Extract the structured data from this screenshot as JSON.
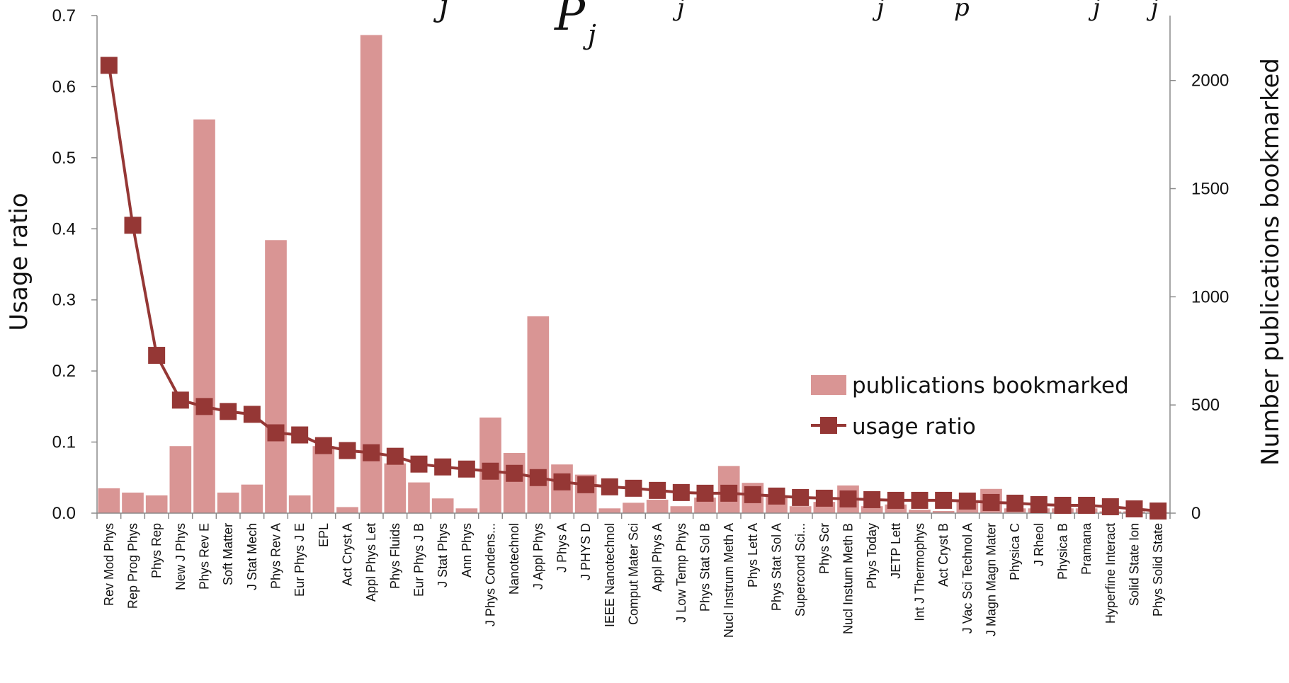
{
  "header": {
    "formula_fragments": [
      "j",
      "P",
      "j",
      "j",
      "j",
      "p",
      "j",
      "j"
    ]
  },
  "chart_data": {
    "type": "bar",
    "categories": [
      "Rev Mod Phys",
      "Rep Prog Phys",
      "Phys Rep",
      "New J Phys",
      "Phys Rev E",
      "Soft Matter",
      "J Stat Mech",
      "Phys Rev A",
      "Eur Phys J E",
      "EPL",
      "Act Cryst A",
      "Appl Phys Let",
      "Phys Fluids",
      "Eur Phys J B",
      "J Stat Phys",
      "Ann Phys",
      "J Phys Condens...",
      "Nanotechnol",
      "J Appl Phys",
      "J Phys A",
      "J PHYS D",
      "IEEE Nanotechnol",
      "Comput Mater Sci",
      "Appl Phys A",
      "J Low Temp Phys",
      "Phys Stat Sol B",
      "Nucl Instrum Meth A",
      "Phys Lett A",
      "Phys Stat Sol A",
      "Supercond Sci...",
      "Phys Scr",
      "Nucl Instum Meth B",
      "Phys Today",
      "JETP Lett",
      "Int J Thermophys",
      "Act Cryst B",
      "J Vac Sci Technol A",
      "J Magn Magn Mater",
      "Physica C",
      "J Rheol",
      "Physica B",
      "Pramana",
      "Hyperfine Interact",
      "Solid State Ion",
      "Phys Solid State"
    ],
    "series": [
      {
        "name": "publications bookmarked",
        "axis": "right",
        "style": "bar",
        "color": "#d99594",
        "values": [
          115,
          95,
          82,
          310,
          1820,
          95,
          132,
          1262,
          82,
          310,
          28,
          2210,
          230,
          142,
          68,
          22,
          442,
          278,
          910,
          225,
          178,
          22,
          48,
          62,
          32,
          72,
          218,
          140,
          82,
          32,
          52,
          128,
          32,
          40,
          16,
          10,
          52,
          112,
          22,
          22,
          22,
          22,
          8,
          8,
          4
        ]
      },
      {
        "name": "usage ratio",
        "axis": "left",
        "style": "line",
        "color": "#953735",
        "values": [
          0.63,
          0.405,
          0.222,
          0.159,
          0.15,
          0.143,
          0.139,
          0.113,
          0.11,
          0.095,
          0.088,
          0.085,
          0.08,
          0.069,
          0.065,
          0.062,
          0.059,
          0.056,
          0.05,
          0.044,
          0.04,
          0.037,
          0.035,
          0.032,
          0.029,
          0.028,
          0.028,
          0.026,
          0.024,
          0.022,
          0.021,
          0.02,
          0.019,
          0.018,
          0.018,
          0.018,
          0.017,
          0.015,
          0.014,
          0.012,
          0.011,
          0.011,
          0.009,
          0.006,
          0.003
        ]
      }
    ],
    "ylabel": "Usage ratio",
    "y2label": "Number publications bookmarked",
    "ylim": [
      0,
      0.7
    ],
    "y2lim": [
      0,
      2300
    ],
    "yticks": [
      "0.0",
      "0.1",
      "0.2",
      "0.3",
      "0.4",
      "0.5",
      "0.6",
      "0.7"
    ],
    "y2ticks": [
      "0",
      "500",
      "1000",
      "1500",
      "2000"
    ],
    "legend": {
      "position": "right-middle",
      "entries": [
        "publications bookmarked",
        "usage ratio"
      ]
    },
    "grid": false
  }
}
